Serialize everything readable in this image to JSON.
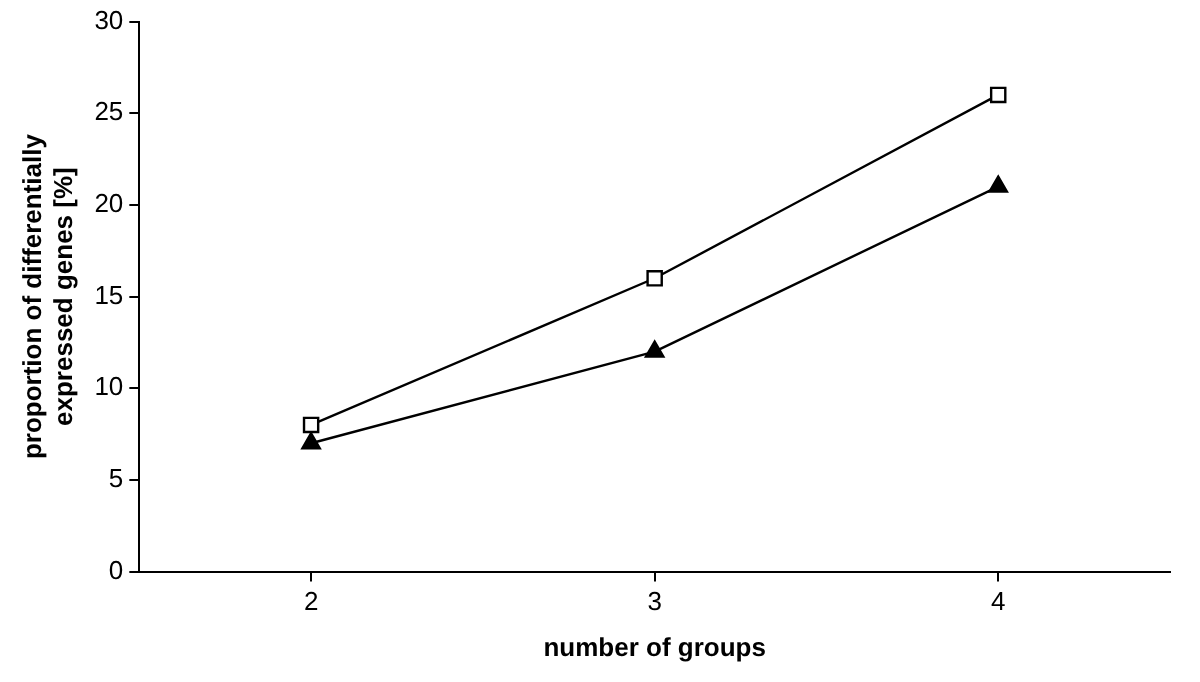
{
  "chart_data": {
    "type": "line",
    "xlabel": "number of groups",
    "ylabel": "proportion of differentially\nexpressed genes [%]",
    "categories": [
      "2",
      "3",
      "4"
    ],
    "series": [
      {
        "color": "#000000",
        "marker": "square",
        "values": [
          8,
          16,
          26
        ]
      },
      {
        "color": "#000000",
        "marker": "triangle",
        "values": [
          7,
          12,
          21
        ]
      }
    ],
    "ylim": [
      0,
      30
    ],
    "yticks": [
      0,
      5,
      10,
      15,
      20,
      25,
      30
    ],
    "grid": false,
    "legend": false,
    "line_style": "solid"
  }
}
